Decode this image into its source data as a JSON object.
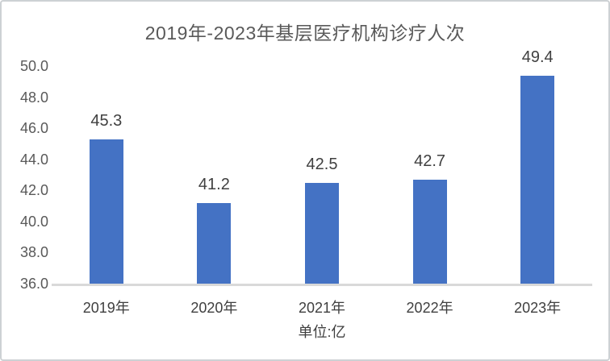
{
  "chart": {
    "title": "2019年-2023年基层医疗机构诊疗人次",
    "unit_label": "单位:亿"
  },
  "chart_data": {
    "type": "bar",
    "title": "2019年-2023年基层医疗机构诊疗人次",
    "categories": [
      "2019年",
      "2020年",
      "2021年",
      "2022年",
      "2023年"
    ],
    "values": [
      45.3,
      41.2,
      42.5,
      42.7,
      49.4
    ],
    "data_labels": [
      "45.3",
      "41.2",
      "42.5",
      "42.7",
      "49.4"
    ],
    "xlabel": "单位:亿",
    "ylabel": "",
    "ylim": [
      36.0,
      50.0
    ],
    "ytick_step": 2.0,
    "yticks": [
      "50.0",
      "48.0",
      "46.0",
      "44.0",
      "42.0",
      "40.0",
      "38.0",
      "36.0"
    ],
    "grid": false,
    "legend": false,
    "colors": {
      "bar": "#4472C4",
      "axis_line": "#D9D9D9",
      "title_text": "#595959",
      "tick_text": "#595959",
      "label_text": "#404040"
    }
  }
}
